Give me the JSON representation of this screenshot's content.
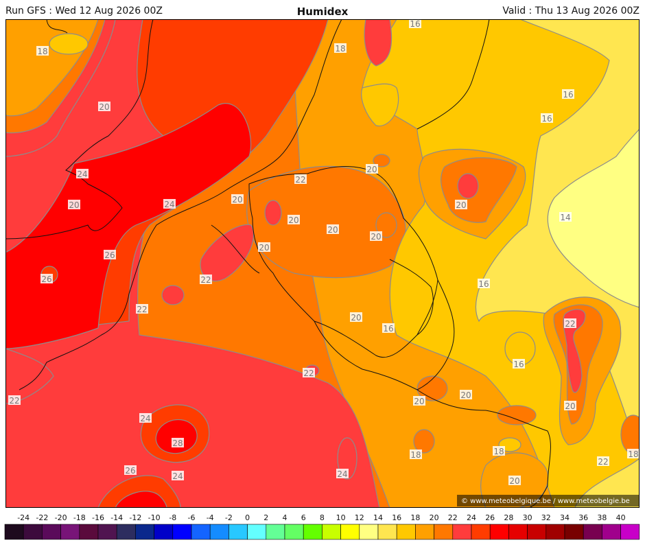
{
  "header": {
    "run": "Run GFS : Wed 12 Aug 2026 00Z",
    "title": "Humidex",
    "valid": "Valid : Thu 13 Aug 2026 00Z"
  },
  "credit": "© www.meteobelgique.be / www.meteobelgie.be",
  "map_labels": [
    "18",
    "20",
    "24",
    "20",
    "24",
    "26",
    "26",
    "22",
    "22",
    "22",
    "24",
    "28",
    "26",
    "24",
    "22",
    "20",
    "20",
    "20",
    "20",
    "20",
    "22",
    "20",
    "18",
    "16",
    "16",
    "16",
    "14",
    "20",
    "16",
    "22",
    "16",
    "20",
    "20",
    "20",
    "20",
    "18",
    "16",
    "20",
    "18",
    "18",
    "24",
    "22"
  ],
  "legend": {
    "ticks": [
      "-24",
      "-22",
      "-20",
      "-18",
      "-16",
      "-14",
      "-12",
      "-10",
      "-8",
      "-6",
      "-4",
      "-2",
      "0",
      "2",
      "4",
      "6",
      "8",
      "10",
      "12",
      "14",
      "16",
      "18",
      "20",
      "22",
      "24",
      "26",
      "28",
      "30",
      "32",
      "34",
      "36",
      "38",
      "40"
    ],
    "colors": [
      "#1e0a1e",
      "#3c0a3c",
      "#5a0a5a",
      "#781478",
      "#5a0a3c",
      "#501450",
      "#2d2d5f",
      "#0a288c",
      "#0000c8",
      "#0000ff",
      "#1464ff",
      "#148cff",
      "#28c8ff",
      "#64ffff",
      "#64ff96",
      "#64ff64",
      "#64ff00",
      "#c8ff00",
      "#ffff00",
      "#ffff82",
      "#ffe650",
      "#ffc800",
      "#ffa000",
      "#ff7800",
      "#ff3c3c",
      "#ff3c00",
      "#ff0000",
      "#e60000",
      "#c80000",
      "#a00000",
      "#780000",
      "#780050",
      "#a0008c",
      "#c800c8"
    ]
  }
}
